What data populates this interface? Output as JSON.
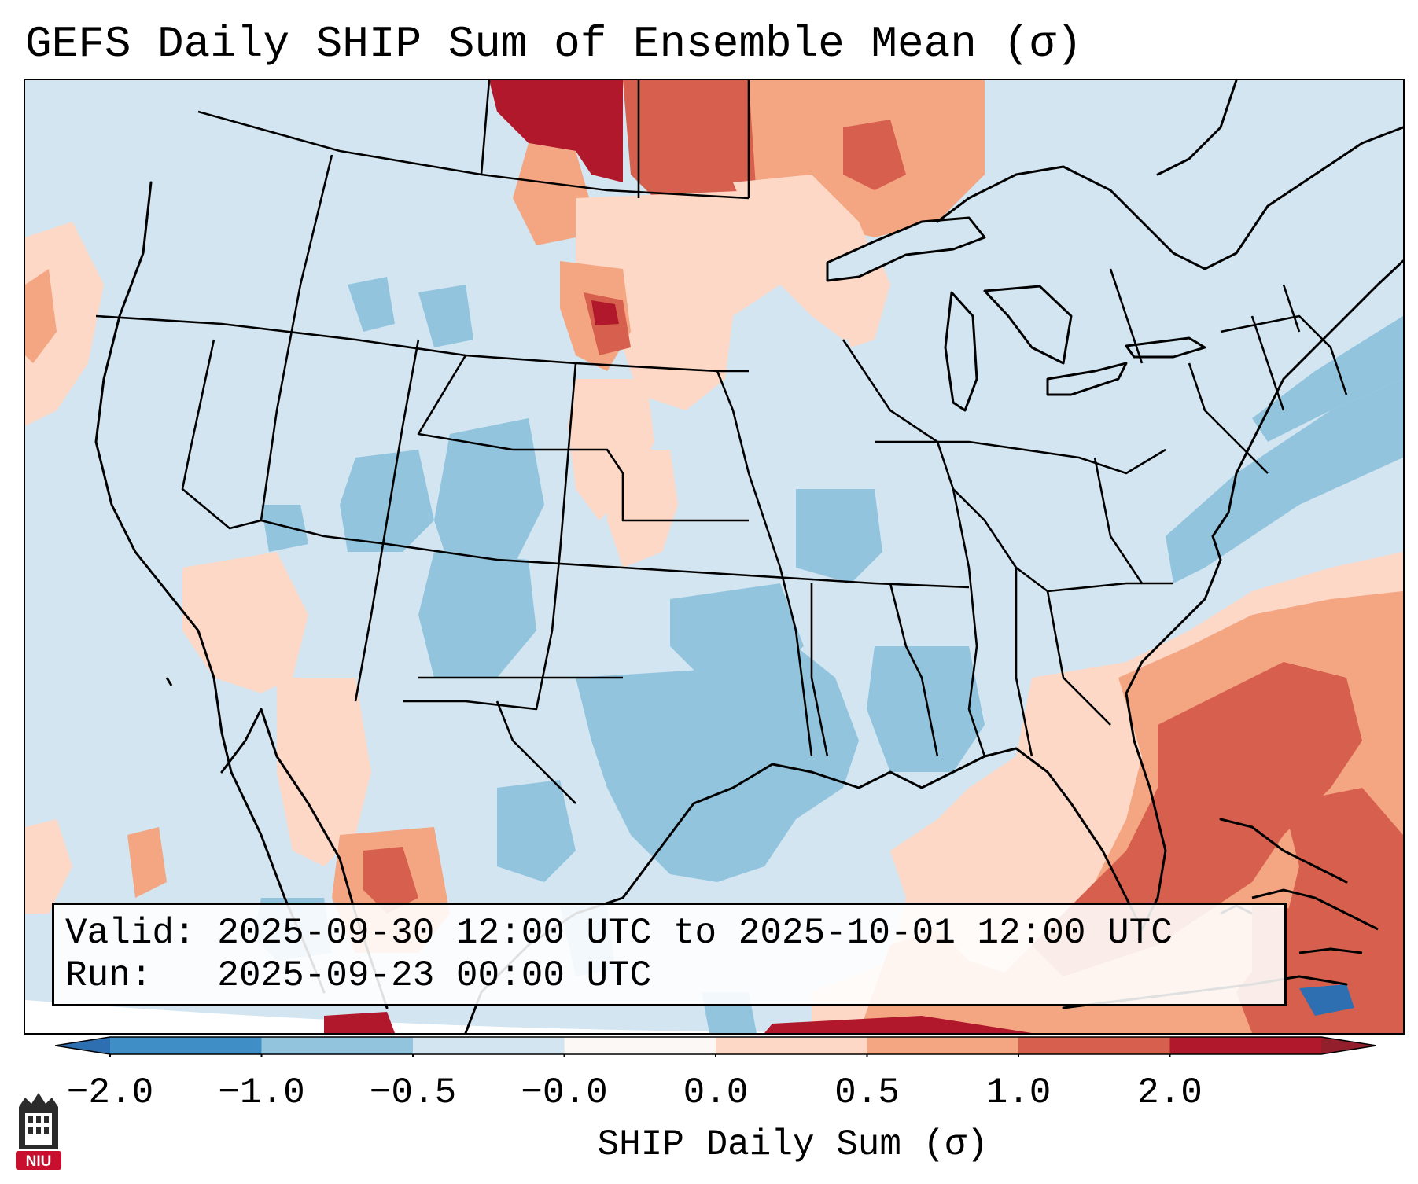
{
  "title": "GEFS Daily SHIP Sum of Ensemble Mean (σ)",
  "info": {
    "valid_label": "Valid:",
    "valid_value": "2025-09-30 12:00 UTC to 2025-10-01 12:00 UTC",
    "run_label": "Run:",
    "run_value": "2025-09-23 00:00 UTC"
  },
  "colorbar": {
    "label": "SHIP Daily Sum (σ)",
    "ticks": [
      "−2.0",
      "−1.0",
      "−0.5",
      "−0.0",
      "0.0",
      "0.5",
      "1.0",
      "2.0"
    ],
    "colors": [
      "#3f8fc6",
      "#92c4de",
      "#d2e5f1",
      "#fbf8f6",
      "#fdd8c6",
      "#f4a582",
      "#d6604d",
      "#b2182b"
    ],
    "under_color": "#2d6fb0",
    "over_color": "#931f2c"
  },
  "logo": {
    "text": "NIU"
  },
  "icons": {
    "logo": "niu-logo-icon"
  }
}
